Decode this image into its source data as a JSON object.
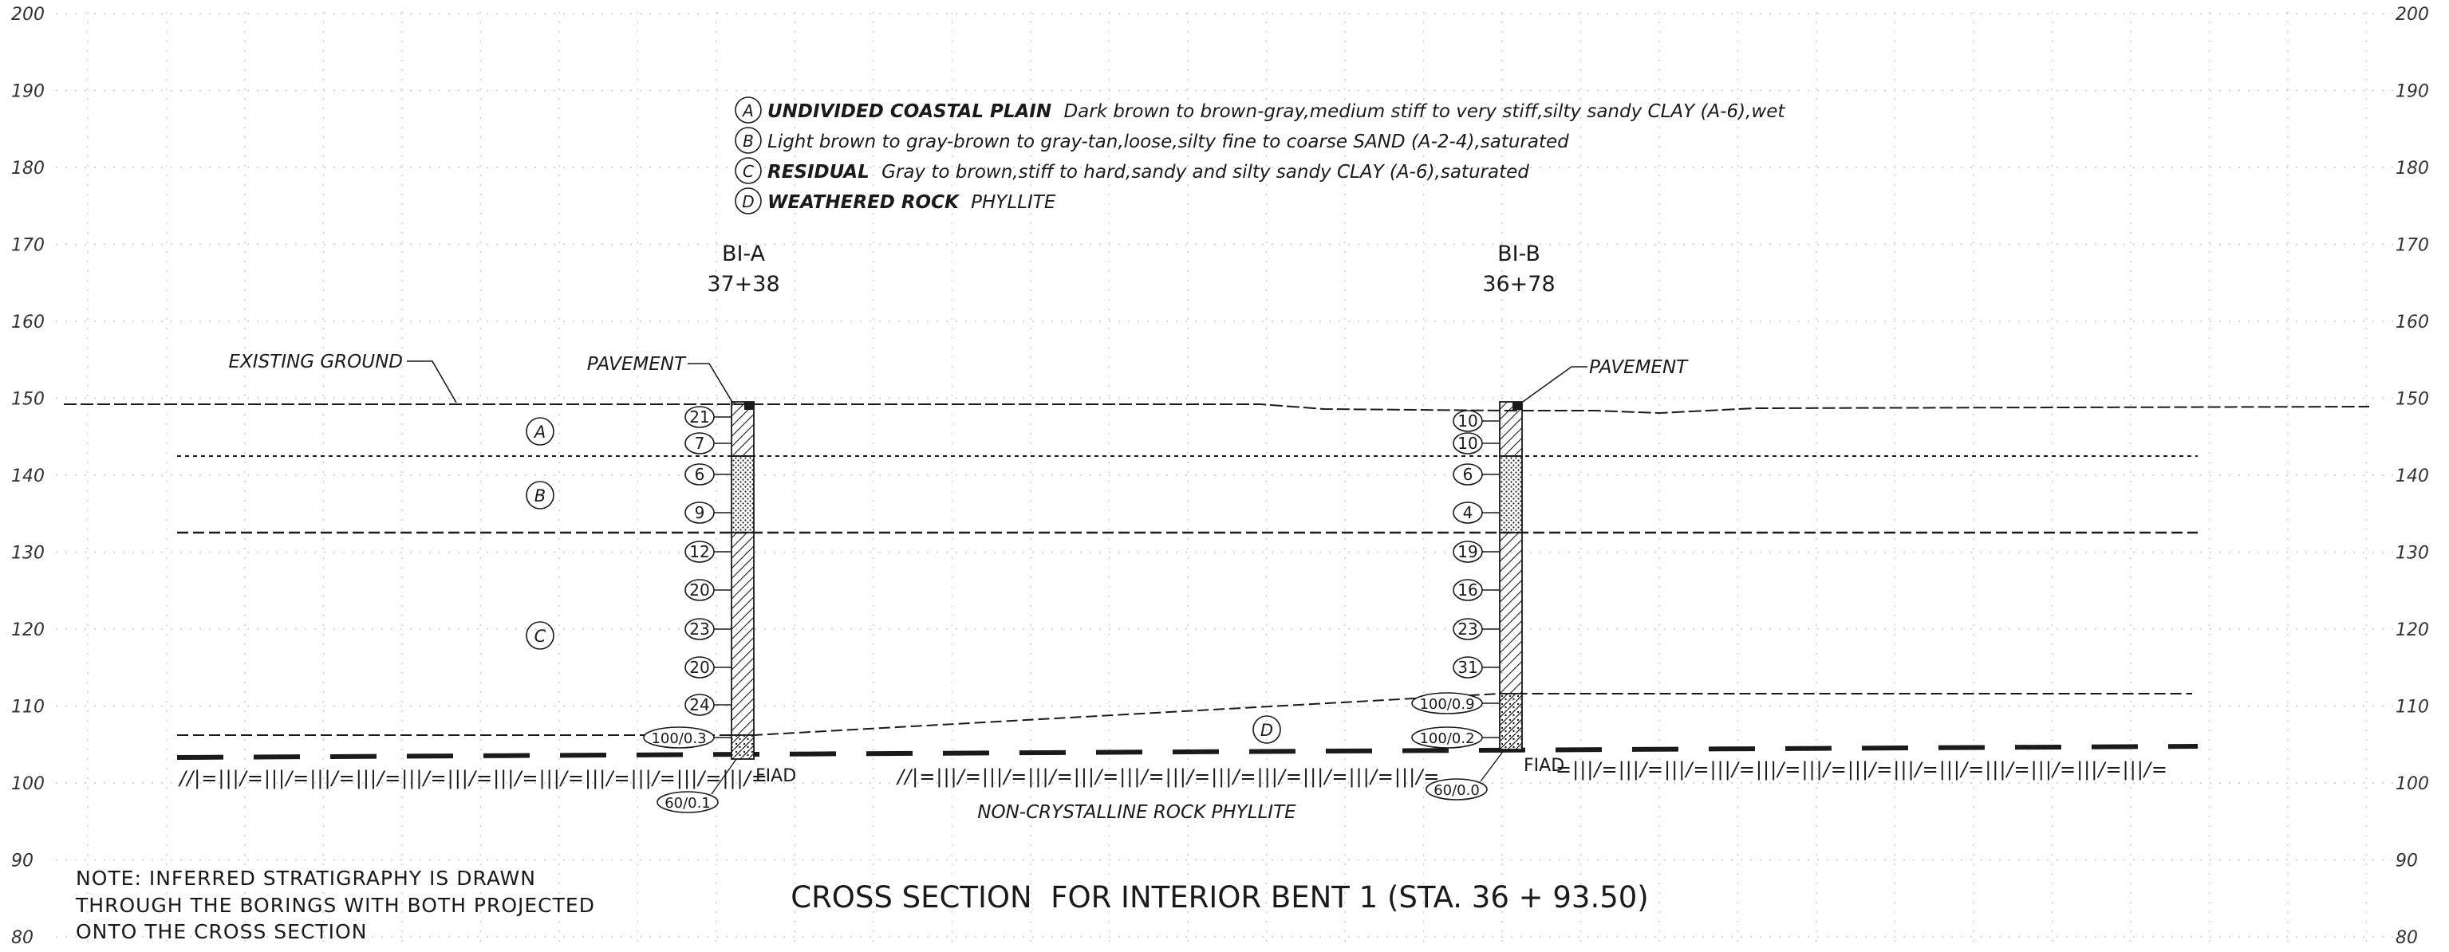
{
  "axis": {
    "elevations": [
      200,
      190,
      180,
      170,
      160,
      150,
      140,
      130,
      120,
      110,
      100,
      90,
      80
    ]
  },
  "legend": [
    {
      "symbol": "A",
      "bold": "UNDIVIDED COASTAL PLAIN",
      "text": "Dark brown to brown-gray,medium stiff to very stiff,silty sandy CLAY (A-6),wet"
    },
    {
      "symbol": "B",
      "bold": "",
      "text": "Light brown to gray-brown to gray-tan,loose,silty fine to coarse SAND (A-2-4),saturated"
    },
    {
      "symbol": "C",
      "bold": "RESIDUAL",
      "text": "Gray to brown,stiff to hard,sandy and silty sandy CLAY (A-6),saturated"
    },
    {
      "symbol": "D",
      "bold": "WEATHERED ROCK",
      "text": "PHYLLITE"
    }
  ],
  "borings": [
    {
      "id": "BI-A",
      "station": "37+38",
      "pavement_label": "PAVEMENT",
      "blows": [
        "21",
        "7",
        "6",
        "9",
        "12",
        "20",
        "23",
        "20",
        "24",
        "100/0.3"
      ],
      "bottom_blow": "60/0.1",
      "refusal": "FIAD"
    },
    {
      "id": "BI-B",
      "station": "36+78",
      "pavement_label": "PAVEMENT",
      "blows": [
        "10",
        "10",
        "6",
        "4",
        "19",
        "16",
        "23",
        "31",
        "100/0.9",
        "100/0.2"
      ],
      "bottom_blow": "60/0.0",
      "refusal": "FIAD"
    }
  ],
  "labels": {
    "existing_ground": "EXISTING GROUND",
    "layer_a": "A",
    "layer_b": "B",
    "layer_c": "C",
    "layer_d": "D",
    "rock": "NON-CRYSTALLINE ROCK PHYLLITE"
  },
  "note": {
    "line1": "NOTE: INFERRED STRATIGRAPHY IS DRAWN",
    "line2": "THROUGH THE BORINGS WITH BOTH PROJECTED",
    "line3": "ONTO THE CROSS SECTION"
  },
  "title": "CROSS SECTION  FOR INTERIOR BENT 1 (STA. 36 + 93.50)"
}
